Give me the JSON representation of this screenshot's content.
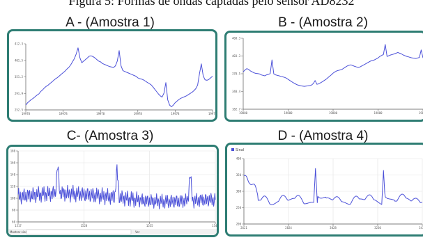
{
  "caption": "Figura 5: Formas de ondas captadas pelo sensor AD8232",
  "colors": {
    "frame": "#2e7d73",
    "trace": "#4a4fd8",
    "grid": "#e3e3e3"
  },
  "chart_data": [
    {
      "type": "line",
      "title": "A - (Amostra 1)",
      "yticks": [
        "412.3",
        "401.5",
        "351.2",
        "291.9",
        "252.5"
      ],
      "xticks": [
        "19978",
        "19978",
        "19978",
        "19978",
        "19978",
        "19978"
      ],
      "ylim": [
        250,
        415
      ],
      "series": [
        {
          "values": [
            262,
            268,
            272,
            276,
            279,
            283,
            287,
            290,
            296,
            300,
            305,
            309,
            312,
            316,
            320,
            324,
            328,
            331,
            335,
            339,
            343,
            347,
            352,
            356,
            362,
            370,
            378,
            390,
            405,
            380,
            368,
            372,
            376,
            380,
            384,
            385,
            383,
            380,
            376,
            372,
            370,
            366,
            364,
            362,
            360,
            358,
            357,
            356,
            360,
            372,
            398,
            360,
            348,
            346,
            344,
            342,
            340,
            338,
            336,
            334,
            330,
            328,
            327,
            325,
            322,
            319,
            316,
            313,
            308,
            302,
            296,
            290,
            285,
            282,
            292,
            318,
            275,
            262,
            258,
            262,
            268,
            272,
            276,
            279,
            281,
            283,
            285,
            288,
            291,
            294,
            298,
            303,
            312,
            340,
            365,
            335,
            325,
            324,
            326,
            330,
            334
          ]
        }
      ]
    },
    {
      "type": "line",
      "title": "B - (Amostra 2)",
      "yticks": [
        "460.3",
        "403.3",
        "370.5",
        "340.4",
        "182.7"
      ],
      "xticks": [
        "19880",
        "19880",
        "19880",
        "19880",
        "19880"
      ],
      "ylim": [
        180,
        465
      ],
      "series": [
        {
          "values": [
            330,
            338,
            343,
            340,
            334,
            330,
            326,
            324,
            323,
            322,
            318,
            316,
            314,
            318,
            320,
            323,
            378,
            322,
            318,
            316,
            314,
            312,
            310,
            308,
            305,
            300,
            295,
            290,
            286,
            282,
            278,
            276,
            274,
            273,
            272,
            273,
            274,
            275,
            277,
            283,
            295,
            280,
            282,
            286,
            290,
            295,
            300,
            306,
            312,
            318,
            325,
            330,
            334,
            336,
            338,
            340,
            345,
            350,
            354,
            357,
            358,
            355,
            352,
            350,
            348,
            350,
            354,
            358,
            362,
            366,
            370,
            374,
            376,
            378,
            382,
            386,
            392,
            396,
            400,
            440,
            392,
            395,
            398,
            400,
            402,
            405,
            408,
            405,
            402,
            398,
            395,
            392,
            390,
            388,
            386,
            385,
            384,
            386,
            388,
            418,
            386
          ]
        }
      ]
    },
    {
      "type": "line",
      "title": "C- (Amostra 3)",
      "yticks": [
        "180",
        "160",
        "140",
        "120",
        "100",
        "80",
        "60"
      ],
      "xticks": [
        "1517",
        "1528",
        "1535",
        "1546"
      ],
      "footer": [
        "Mostrar sinal",
        "Ver"
      ],
      "ylim": [
        50,
        190
      ]
    },
    {
      "type": "line",
      "title": "D - (Amostra 4)",
      "legend": "Sinal",
      "yticks": [
        "400",
        "350",
        "300",
        "250",
        "200"
      ],
      "xticks": [
        "2621",
        "2824",
        "3028",
        "3230",
        "3433"
      ],
      "ylim": [
        190,
        420
      ]
    }
  ]
}
